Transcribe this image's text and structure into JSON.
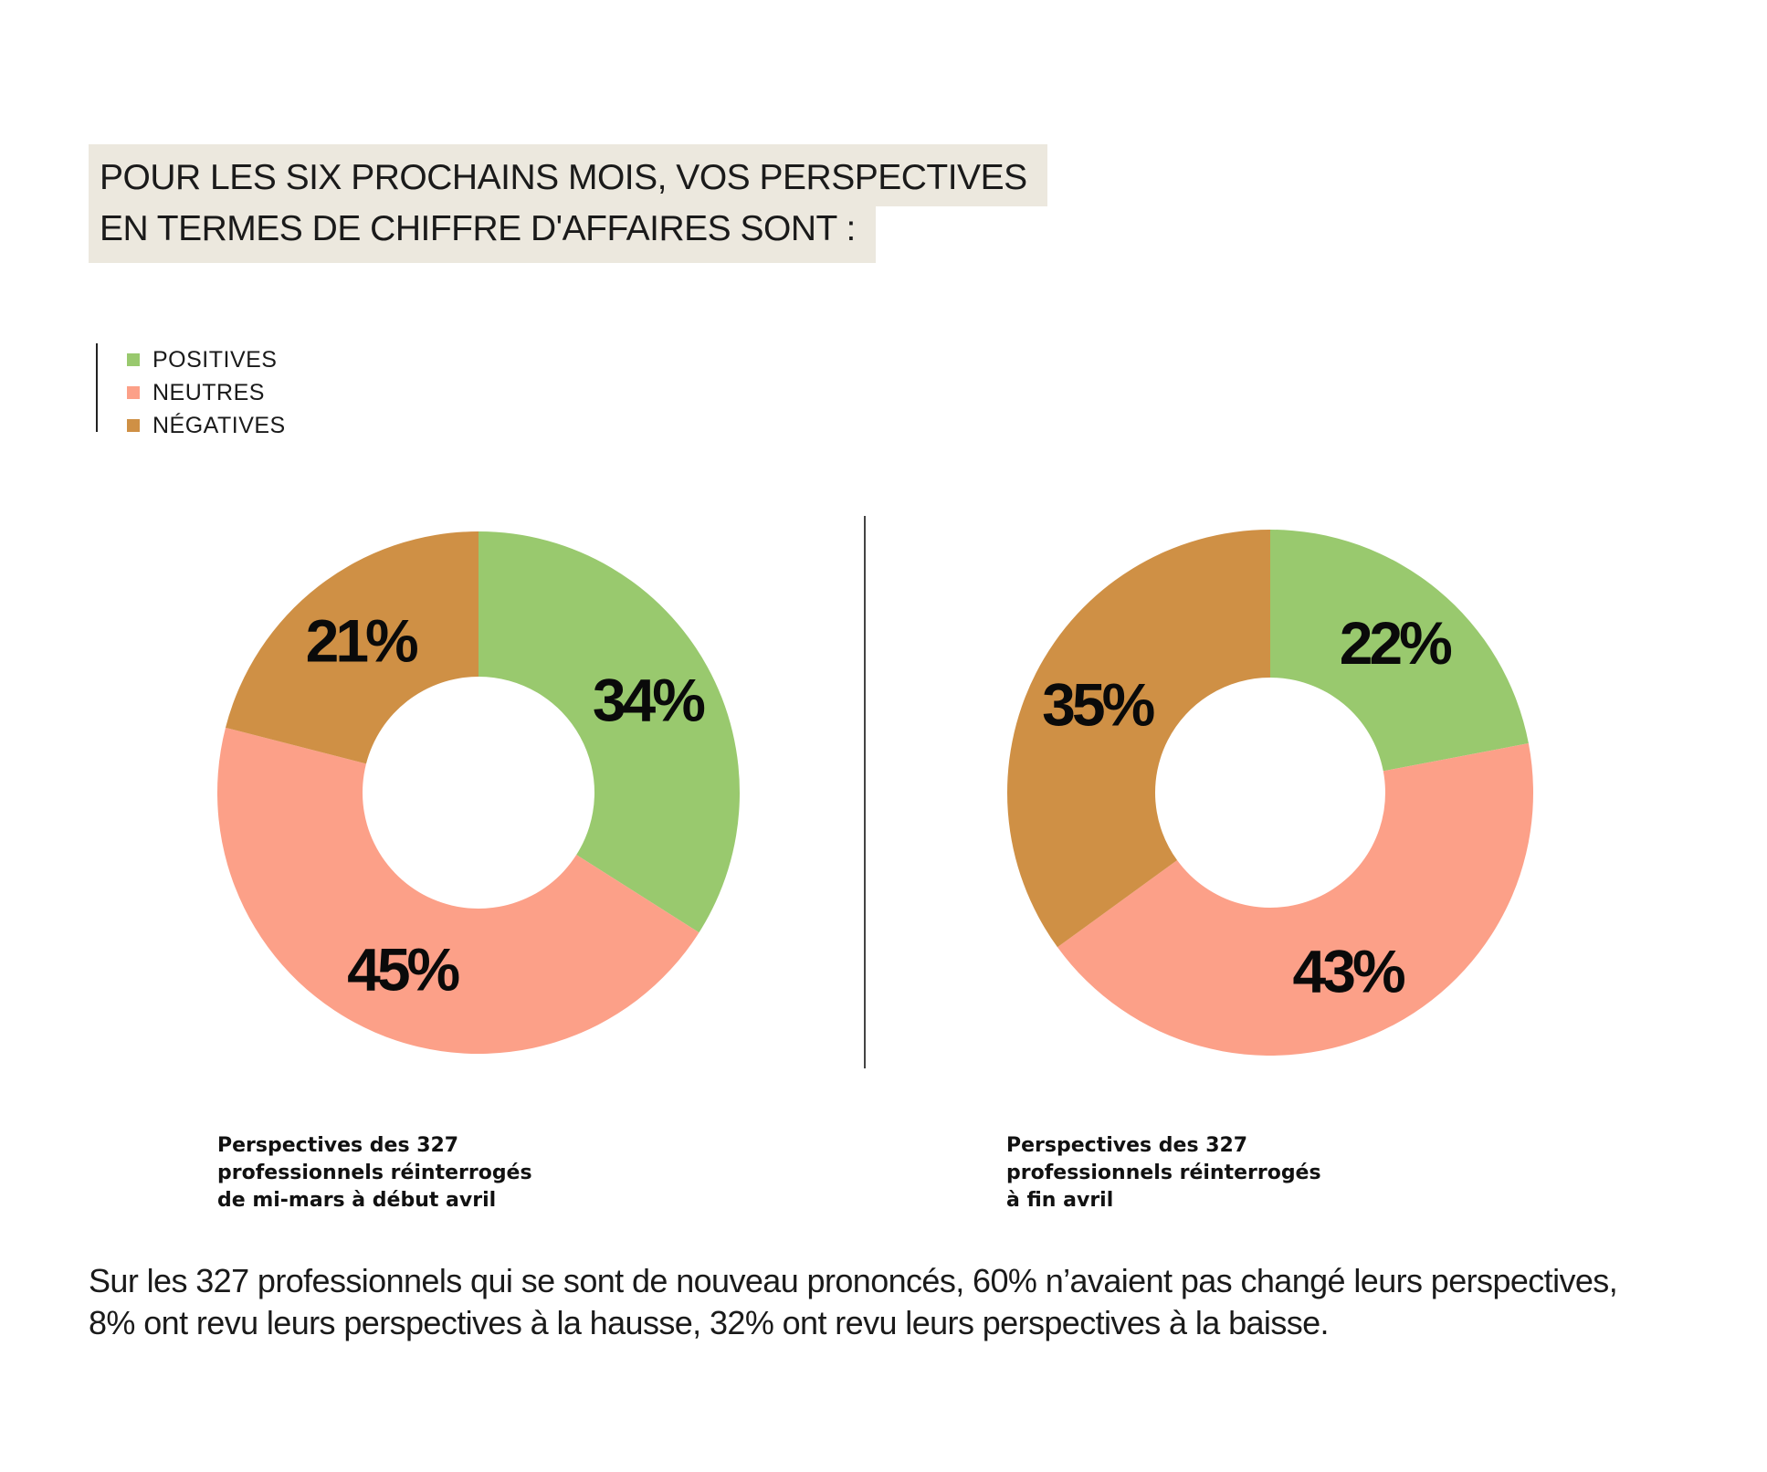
{
  "header": {
    "title_lines": [
      "POUR LES SIX PROCHAINS MOIS, VOS PERSPECTIVES",
      "EN TERMES DE CHIFFRE D'AFFAIRES SONT :"
    ]
  },
  "legend": {
    "items": [
      {
        "label": "POSITIVES",
        "color": "#99c96e"
      },
      {
        "label": "NEUTRES",
        "color": "#fca088"
      },
      {
        "label": "NÉGATIVES",
        "color": "#cf9045"
      }
    ]
  },
  "chart_data": [
    {
      "type": "pie",
      "donut": true,
      "categories": [
        "POSITIVES",
        "NEUTRES",
        "NÉGATIVES"
      ],
      "values": [
        34,
        45,
        21
      ],
      "labels": [
        "34%",
        "45%",
        "21%"
      ],
      "colors": [
        "#99c96e",
        "#fca088",
        "#cf9045"
      ],
      "legend_position": "top-left",
      "caption_lines": [
        "Perspectives des 327",
        "professionnels réinterrogés",
        "de mi-mars à début avril"
      ]
    },
    {
      "type": "pie",
      "donut": true,
      "categories": [
        "POSITIVES",
        "NEUTRES",
        "NÉGATIVES"
      ],
      "values": [
        22,
        43,
        35
      ],
      "labels": [
        "22%",
        "43%",
        "35%"
      ],
      "colors": [
        "#99c96e",
        "#fca088",
        "#cf9045"
      ],
      "legend_position": "top-left",
      "caption_lines": [
        "Perspectives des 327",
        "professionnels réinterrogés",
        "à fin avril"
      ]
    }
  ],
  "footnote": {
    "lines": [
      "Sur les 327 professionnels qui se sont de nouveau prononcés, 60% n’avaient pas changé leurs perspectives,",
      "8% ont revu leurs perspectives à la hausse, 32% ont revu leurs perspectives à la baisse."
    ]
  }
}
